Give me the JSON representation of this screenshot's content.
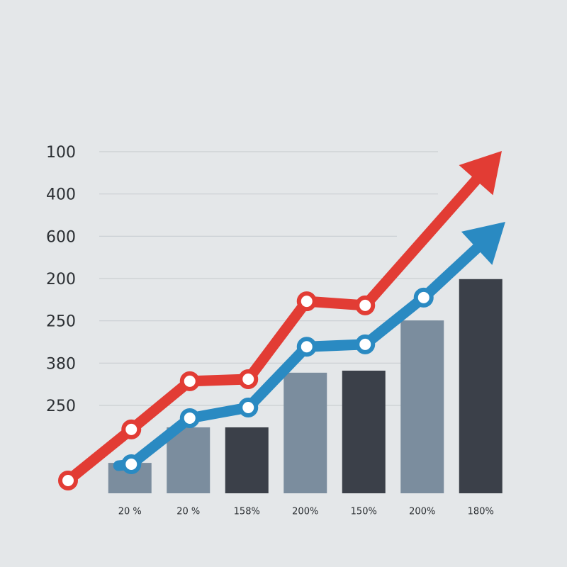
{
  "chart_data": {
    "type": "bar",
    "y_labels": [
      "100",
      "400",
      "600",
      "200",
      "250",
      "380",
      "250"
    ],
    "categories": [
      "20 %",
      "20  %",
      "158%",
      "200%",
      "150%",
      "200%",
      "180%"
    ],
    "values": [
      8.9,
      19.3,
      19.3,
      35.3,
      35.9,
      50.6,
      62.7
    ],
    "colors": [
      "#7b8d9e",
      "#7b8d9e",
      "#3b4049",
      "#7b8d9e",
      "#3b4049",
      "#7b8d9e",
      "#3b4049"
    ],
    "ylim": [
      0,
      100
    ],
    "series": [
      {
        "name": "red",
        "color": "#e23c34",
        "values": [
          18.7,
          32.8,
          33.4,
          56.2,
          55.0,
          null,
          null
        ]
      },
      {
        "name": "blue",
        "color": "#2a8ac2",
        "values": [
          8.5,
          22.0,
          25.1,
          42.9,
          43.6,
          57.3,
          null
        ]
      }
    ]
  }
}
